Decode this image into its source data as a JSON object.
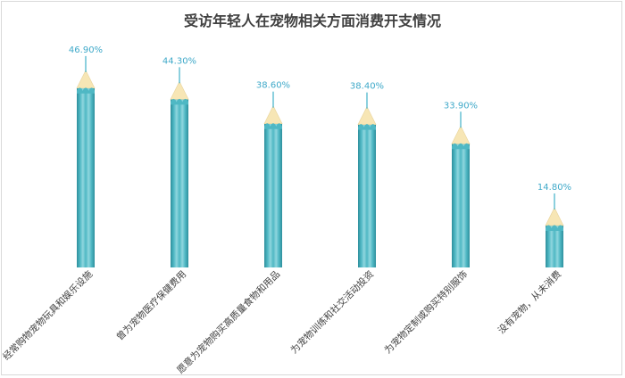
{
  "chart_data": {
    "type": "bar",
    "title": "受访年轻人在宠物相关方面消费开支情况",
    "categories": [
      "经常购物宠物玩具和娱乐设施",
      "曾为宠物医疗保健费用",
      "愿意为宠物购买高质量食物和用品",
      "为宠物训练和社交活动投资",
      "为宠物定制或购买特别服饰",
      "没有宠物，从未消费"
    ],
    "values": [
      46.9,
      44.3,
      38.6,
      38.4,
      33.9,
      14.8
    ],
    "value_labels": [
      "46.90%",
      "44.30%",
      "38.60%",
      "38.40%",
      "33.90%",
      "14.80%"
    ],
    "ylim": [
      0,
      50
    ],
    "grid": false,
    "legend": "none",
    "xlabel": "",
    "ylabel": "",
    "colors": {
      "pencil_body": "#4fb8c4",
      "pencil_light": "#8fd6de",
      "pencil_dark": "#2e8f9c",
      "wood_tip": "#f7e6b5",
      "lead": "#3fb0c8",
      "value_label": "#3fa9c9",
      "title": "#404040",
      "category_label": "#404040"
    }
  }
}
